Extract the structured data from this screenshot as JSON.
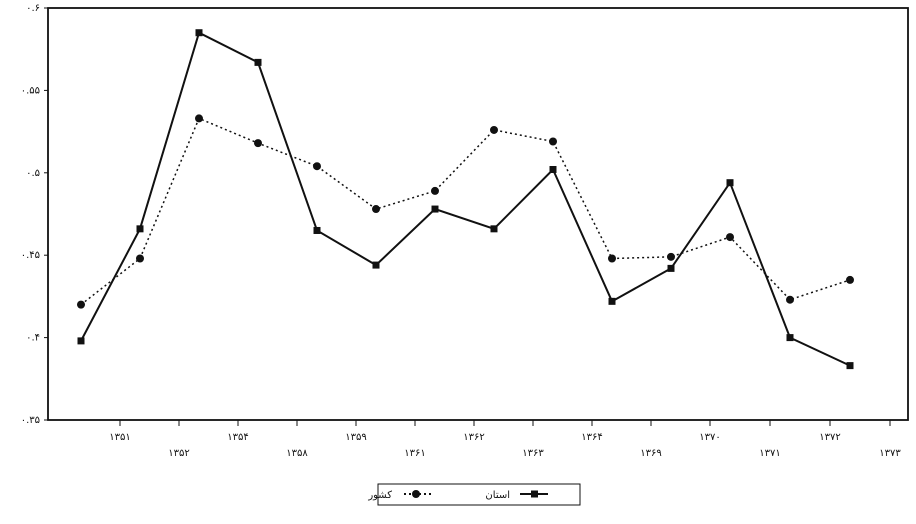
{
  "chart_data": {
    "type": "line",
    "x": [
      "۱۳۵۱",
      "۱۳۵۲",
      "۱۳۵۴",
      "۱۳۵۸",
      "۱۳۵۹",
      "۱۳۶۱",
      "۱۳۶۲",
      "۱۳۶۳",
      "۱۳۶۴",
      "۱۳۶۹",
      "۱۳۷۰",
      "۱۳۷۱",
      "۱۳۷۲",
      "۱۳۷۳"
    ],
    "x_tick_labels": [
      "۱۳۵۱",
      "۱۳۵۲",
      "۱۳۵۴",
      "۱۳۵۸",
      "۱۳۵۹",
      "۱۳۶۱",
      "۱۳۶۲",
      "۱۳۶۳",
      "۱۳۶۴",
      "۱۳۶۹",
      "۱۳۷۰",
      "۱۳۷۱",
      "۱۳۷۲",
      "۱۳۷۳"
    ],
    "y_tick_labels": [
      "۰.۶",
      "۰.۵۵",
      "۰.۵",
      "۰.۴۵",
      "۰.۴",
      "۰.۳۵"
    ],
    "ylim": [
      0.35,
      0.6
    ],
    "series": [
      {
        "name": "استان",
        "line_style": "solid",
        "marker": "square",
        "values": [
          0.398,
          0.466,
          0.585,
          0.567,
          0.465,
          0.444,
          0.478,
          0.466,
          0.502,
          0.422,
          0.442,
          0.494,
          0.4,
          0.383
        ]
      },
      {
        "name": "کشور",
        "line_style": "dotted",
        "marker": "circle",
        "values": [
          0.42,
          0.448,
          0.533,
          0.518,
          0.504,
          0.478,
          0.489,
          0.526,
          0.519,
          0.448,
          0.449,
          0.461,
          0.423,
          0.435
        ]
      }
    ],
    "legend_position": "bottom-center",
    "grid": false,
    "title": "",
    "xlabel": "",
    "ylabel": ""
  },
  "legend": {
    "items": [
      {
        "label": "استان",
        "line_style": "solid",
        "marker": "square"
      },
      {
        "label": "کشور",
        "line_style": "dotted",
        "marker": "circle"
      }
    ]
  },
  "colors": {
    "line": "#111111",
    "axis": "#111111",
    "background": "#ffffff"
  }
}
